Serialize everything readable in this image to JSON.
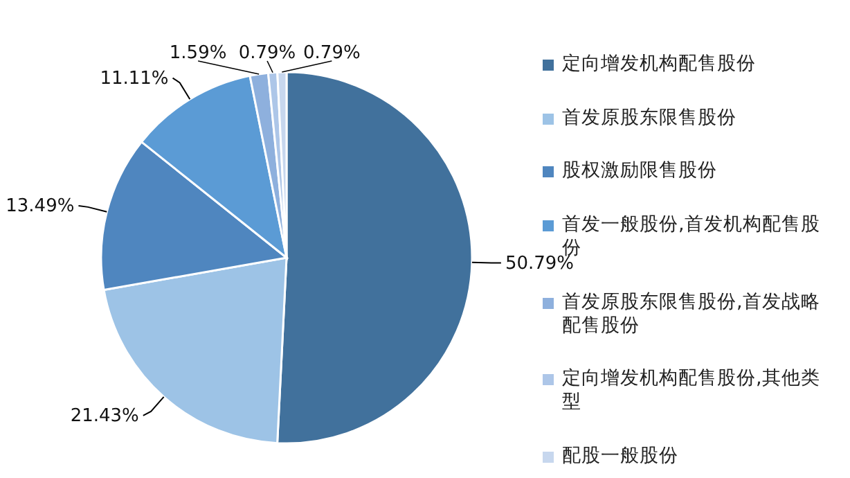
{
  "chart_data": {
    "type": "pie",
    "categories": [
      "定向增发机构配售股份",
      "首发原股东限售股份",
      "股权激励限售股份",
      "首发一般股份,首发机构配售股份",
      "首发原股东限售股份,首发战略配售股份",
      "定向增发机构配售股份,其他类型",
      "配股一般股份"
    ],
    "values": [
      50.79,
      21.43,
      13.49,
      11.11,
      1.59,
      0.79,
      0.79
    ],
    "colors": [
      "#41719c",
      "#9dc3e6",
      "#4f86bf",
      "#5b9bd5",
      "#8eb0dd",
      "#adc6e8",
      "#c7d7ee"
    ],
    "value_labels": [
      "50.79%",
      "21.43%",
      "13.49%",
      "11.11%",
      "1.59%",
      "0.79%",
      "0.79%"
    ],
    "legend": "right"
  }
}
